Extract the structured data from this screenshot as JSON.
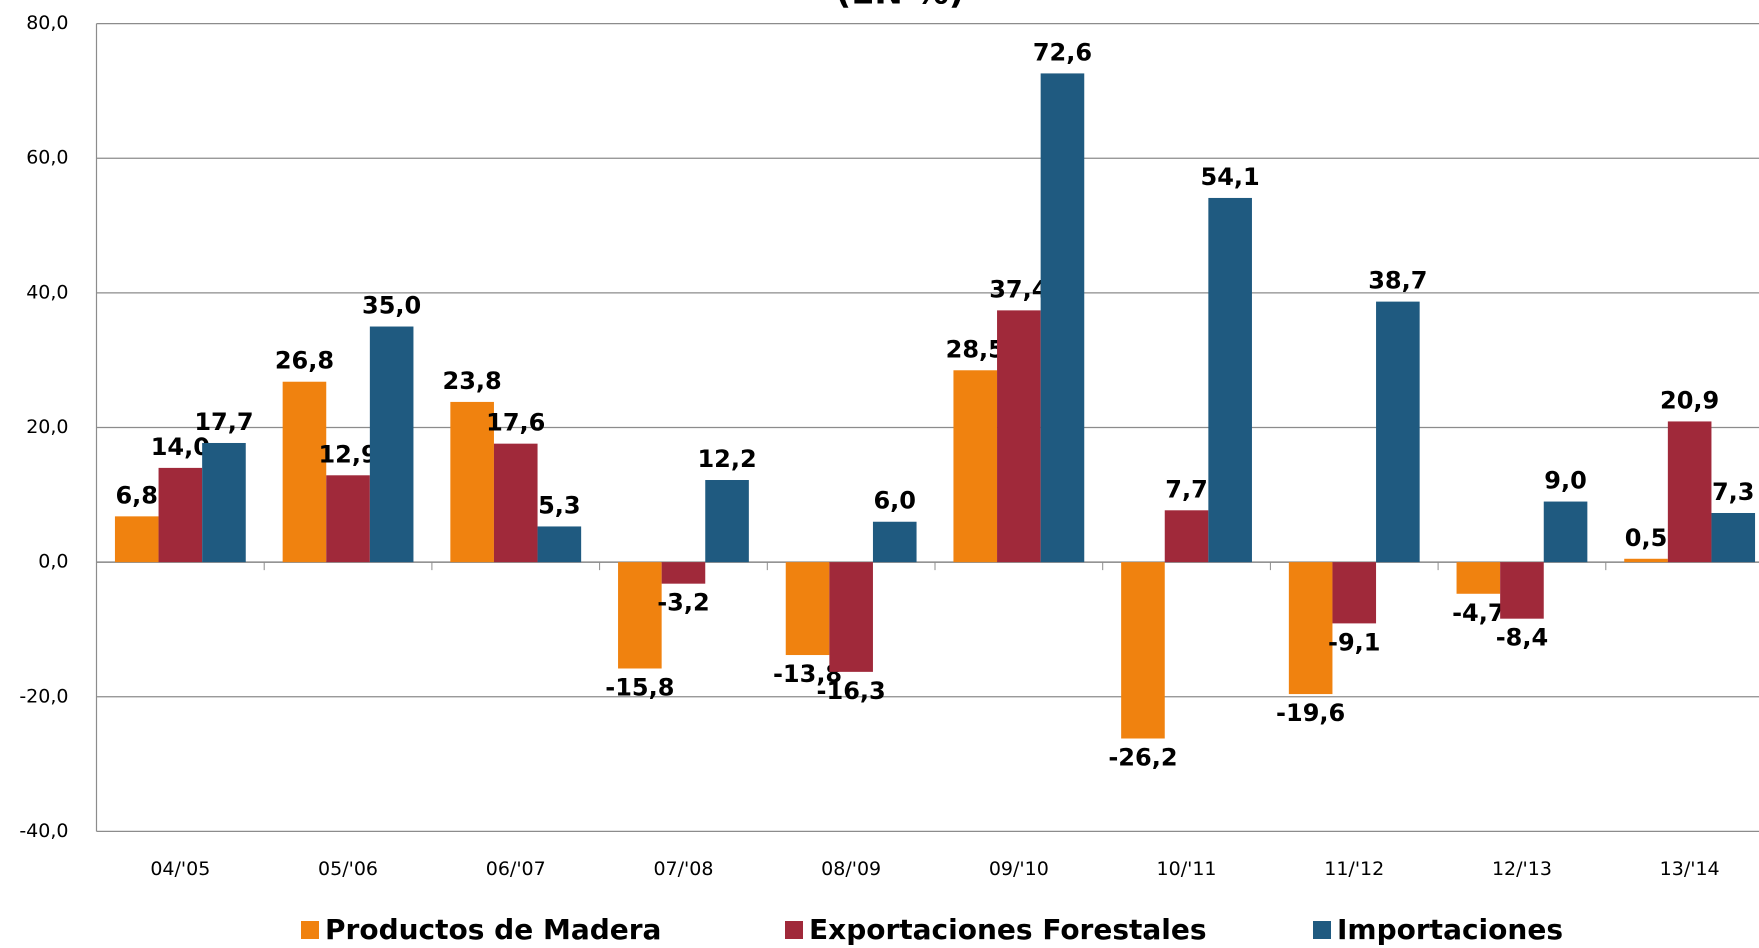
{
  "chart_data": {
    "type": "bar",
    "title": "(EN %)",
    "categories": [
      "04/'05",
      "05/'06",
      "06/'07",
      "07/'08",
      "08/'09",
      "09/'10",
      "10/'11",
      "11/'12",
      "12/'13",
      "13/'14"
    ],
    "series": [
      {
        "name": "Productos de Madera",
        "color": "#f0820f",
        "values": [
          6.8,
          26.8,
          23.8,
          -15.8,
          -13.8,
          28.5,
          -26.2,
          -19.6,
          -4.7,
          0.5
        ],
        "value_labels": [
          "6,8",
          "26,8",
          "23,8",
          "-15,8",
          "-13,8",
          "28,5",
          "-26,2",
          "-19,6",
          "-4,7",
          "0,5"
        ]
      },
      {
        "name": "Exportaciones Forestales",
        "color": "#a0293a",
        "values": [
          14.0,
          12.9,
          17.6,
          -3.2,
          -16.3,
          37.4,
          7.7,
          -9.1,
          -8.4,
          20.9
        ],
        "value_labels": [
          "14,0",
          "12,9",
          "17,6",
          "-3,2",
          "-16,3",
          "37,4",
          "7,7",
          "-9,1",
          "-8,4",
          "20,9"
        ]
      },
      {
        "name": "Importaciones",
        "color": "#1f5a80",
        "values": [
          17.7,
          35.0,
          5.3,
          12.2,
          6.0,
          72.6,
          54.1,
          38.7,
          9.0,
          7.3
        ],
        "value_labels": [
          "17,7",
          "35,0",
          "5,3",
          "12,2",
          "6,0",
          "72,6",
          "54,1",
          "38,7",
          "9,0",
          "7,3"
        ]
      }
    ],
    "ylim": [
      -40,
      80
    ],
    "yticks": [
      {
        "value": -40,
        "label": "-40,0"
      },
      {
        "value": -20,
        "label": "-20,0"
      },
      {
        "value": 0,
        "label": "0,0"
      },
      {
        "value": 20,
        "label": "20,0"
      },
      {
        "value": 40,
        "label": "40,0"
      },
      {
        "value": 60,
        "label": "60,0"
      },
      {
        "value": 80,
        "label": "80,0"
      }
    ],
    "grid": true,
    "legend": "bottom"
  }
}
